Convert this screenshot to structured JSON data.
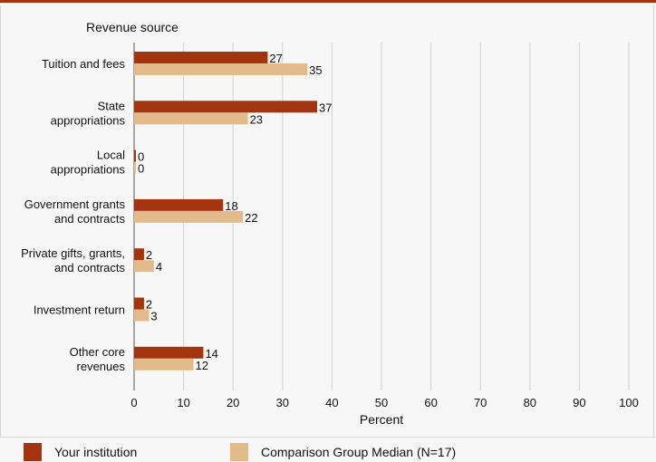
{
  "colors": {
    "institution": "#a2350f",
    "comparison": "#e3bb8a",
    "grid": "#d2d2d2",
    "axis": "#555555"
  },
  "legend": {
    "institution_label": "Your institution",
    "comparison_label": "Comparison Group Median (N=17)"
  },
  "chart_data": {
    "type": "bar",
    "orientation": "horizontal",
    "title": "",
    "ylabel": "Revenue source",
    "xlabel": "Percent",
    "xlim": [
      0,
      100
    ],
    "xticks": [
      0,
      10,
      20,
      30,
      40,
      50,
      60,
      70,
      80,
      90,
      100
    ],
    "grid": true,
    "legend_position": "bottom",
    "categories": [
      [
        "Tuition and fees"
      ],
      [
        "State",
        "appropriations"
      ],
      [
        "Local",
        "appropriations"
      ],
      [
        "Government grants",
        "and contracts"
      ],
      [
        "Private gifts, grants,",
        "and contracts"
      ],
      [
        "Investment return"
      ],
      [
        "Other core",
        "revenues"
      ]
    ],
    "series": [
      {
        "name": "Your institution",
        "values": [
          27,
          37,
          0,
          18,
          2,
          2,
          14
        ]
      },
      {
        "name": "Comparison Group Median (N=17)",
        "values": [
          35,
          23,
          0,
          22,
          4,
          3,
          12
        ]
      }
    ]
  }
}
